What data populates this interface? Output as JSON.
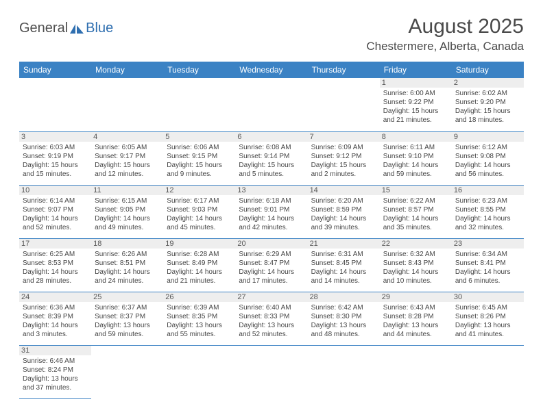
{
  "logo": {
    "word1": "General",
    "word2": "Blue"
  },
  "title": "August 2025",
  "location": "Chestermere, Alberta, Canada",
  "day_headers": [
    "Sunday",
    "Monday",
    "Tuesday",
    "Wednesday",
    "Thursday",
    "Friday",
    "Saturday"
  ],
  "colors": {
    "header_bg": "#3b82c4",
    "grid_line": "#3b82c4",
    "daynum_bg": "#eeeeee"
  },
  "weeks": [
    [
      null,
      null,
      null,
      null,
      null,
      {
        "n": "1",
        "sr": "Sunrise: 6:00 AM",
        "ss": "Sunset: 9:22 PM",
        "d1": "Daylight: 15 hours",
        "d2": "and 21 minutes."
      },
      {
        "n": "2",
        "sr": "Sunrise: 6:02 AM",
        "ss": "Sunset: 9:20 PM",
        "d1": "Daylight: 15 hours",
        "d2": "and 18 minutes."
      }
    ],
    [
      {
        "n": "3",
        "sr": "Sunrise: 6:03 AM",
        "ss": "Sunset: 9:19 PM",
        "d1": "Daylight: 15 hours",
        "d2": "and 15 minutes."
      },
      {
        "n": "4",
        "sr": "Sunrise: 6:05 AM",
        "ss": "Sunset: 9:17 PM",
        "d1": "Daylight: 15 hours",
        "d2": "and 12 minutes."
      },
      {
        "n": "5",
        "sr": "Sunrise: 6:06 AM",
        "ss": "Sunset: 9:15 PM",
        "d1": "Daylight: 15 hours",
        "d2": "and 9 minutes."
      },
      {
        "n": "6",
        "sr": "Sunrise: 6:08 AM",
        "ss": "Sunset: 9:14 PM",
        "d1": "Daylight: 15 hours",
        "d2": "and 5 minutes."
      },
      {
        "n": "7",
        "sr": "Sunrise: 6:09 AM",
        "ss": "Sunset: 9:12 PM",
        "d1": "Daylight: 15 hours",
        "d2": "and 2 minutes."
      },
      {
        "n": "8",
        "sr": "Sunrise: 6:11 AM",
        "ss": "Sunset: 9:10 PM",
        "d1": "Daylight: 14 hours",
        "d2": "and 59 minutes."
      },
      {
        "n": "9",
        "sr": "Sunrise: 6:12 AM",
        "ss": "Sunset: 9:08 PM",
        "d1": "Daylight: 14 hours",
        "d2": "and 56 minutes."
      }
    ],
    [
      {
        "n": "10",
        "sr": "Sunrise: 6:14 AM",
        "ss": "Sunset: 9:07 PM",
        "d1": "Daylight: 14 hours",
        "d2": "and 52 minutes."
      },
      {
        "n": "11",
        "sr": "Sunrise: 6:15 AM",
        "ss": "Sunset: 9:05 PM",
        "d1": "Daylight: 14 hours",
        "d2": "and 49 minutes."
      },
      {
        "n": "12",
        "sr": "Sunrise: 6:17 AM",
        "ss": "Sunset: 9:03 PM",
        "d1": "Daylight: 14 hours",
        "d2": "and 45 minutes."
      },
      {
        "n": "13",
        "sr": "Sunrise: 6:18 AM",
        "ss": "Sunset: 9:01 PM",
        "d1": "Daylight: 14 hours",
        "d2": "and 42 minutes."
      },
      {
        "n": "14",
        "sr": "Sunrise: 6:20 AM",
        "ss": "Sunset: 8:59 PM",
        "d1": "Daylight: 14 hours",
        "d2": "and 39 minutes."
      },
      {
        "n": "15",
        "sr": "Sunrise: 6:22 AM",
        "ss": "Sunset: 8:57 PM",
        "d1": "Daylight: 14 hours",
        "d2": "and 35 minutes."
      },
      {
        "n": "16",
        "sr": "Sunrise: 6:23 AM",
        "ss": "Sunset: 8:55 PM",
        "d1": "Daylight: 14 hours",
        "d2": "and 32 minutes."
      }
    ],
    [
      {
        "n": "17",
        "sr": "Sunrise: 6:25 AM",
        "ss": "Sunset: 8:53 PM",
        "d1": "Daylight: 14 hours",
        "d2": "and 28 minutes."
      },
      {
        "n": "18",
        "sr": "Sunrise: 6:26 AM",
        "ss": "Sunset: 8:51 PM",
        "d1": "Daylight: 14 hours",
        "d2": "and 24 minutes."
      },
      {
        "n": "19",
        "sr": "Sunrise: 6:28 AM",
        "ss": "Sunset: 8:49 PM",
        "d1": "Daylight: 14 hours",
        "d2": "and 21 minutes."
      },
      {
        "n": "20",
        "sr": "Sunrise: 6:29 AM",
        "ss": "Sunset: 8:47 PM",
        "d1": "Daylight: 14 hours",
        "d2": "and 17 minutes."
      },
      {
        "n": "21",
        "sr": "Sunrise: 6:31 AM",
        "ss": "Sunset: 8:45 PM",
        "d1": "Daylight: 14 hours",
        "d2": "and 14 minutes."
      },
      {
        "n": "22",
        "sr": "Sunrise: 6:32 AM",
        "ss": "Sunset: 8:43 PM",
        "d1": "Daylight: 14 hours",
        "d2": "and 10 minutes."
      },
      {
        "n": "23",
        "sr": "Sunrise: 6:34 AM",
        "ss": "Sunset: 8:41 PM",
        "d1": "Daylight: 14 hours",
        "d2": "and 6 minutes."
      }
    ],
    [
      {
        "n": "24",
        "sr": "Sunrise: 6:36 AM",
        "ss": "Sunset: 8:39 PM",
        "d1": "Daylight: 14 hours",
        "d2": "and 3 minutes."
      },
      {
        "n": "25",
        "sr": "Sunrise: 6:37 AM",
        "ss": "Sunset: 8:37 PM",
        "d1": "Daylight: 13 hours",
        "d2": "and 59 minutes."
      },
      {
        "n": "26",
        "sr": "Sunrise: 6:39 AM",
        "ss": "Sunset: 8:35 PM",
        "d1": "Daylight: 13 hours",
        "d2": "and 55 minutes."
      },
      {
        "n": "27",
        "sr": "Sunrise: 6:40 AM",
        "ss": "Sunset: 8:33 PM",
        "d1": "Daylight: 13 hours",
        "d2": "and 52 minutes."
      },
      {
        "n": "28",
        "sr": "Sunrise: 6:42 AM",
        "ss": "Sunset: 8:30 PM",
        "d1": "Daylight: 13 hours",
        "d2": "and 48 minutes."
      },
      {
        "n": "29",
        "sr": "Sunrise: 6:43 AM",
        "ss": "Sunset: 8:28 PM",
        "d1": "Daylight: 13 hours",
        "d2": "and 44 minutes."
      },
      {
        "n": "30",
        "sr": "Sunrise: 6:45 AM",
        "ss": "Sunset: 8:26 PM",
        "d1": "Daylight: 13 hours",
        "d2": "and 41 minutes."
      }
    ],
    [
      {
        "n": "31",
        "sr": "Sunrise: 6:46 AM",
        "ss": "Sunset: 8:24 PM",
        "d1": "Daylight: 13 hours",
        "d2": "and 37 minutes."
      },
      null,
      null,
      null,
      null,
      null,
      null
    ]
  ]
}
